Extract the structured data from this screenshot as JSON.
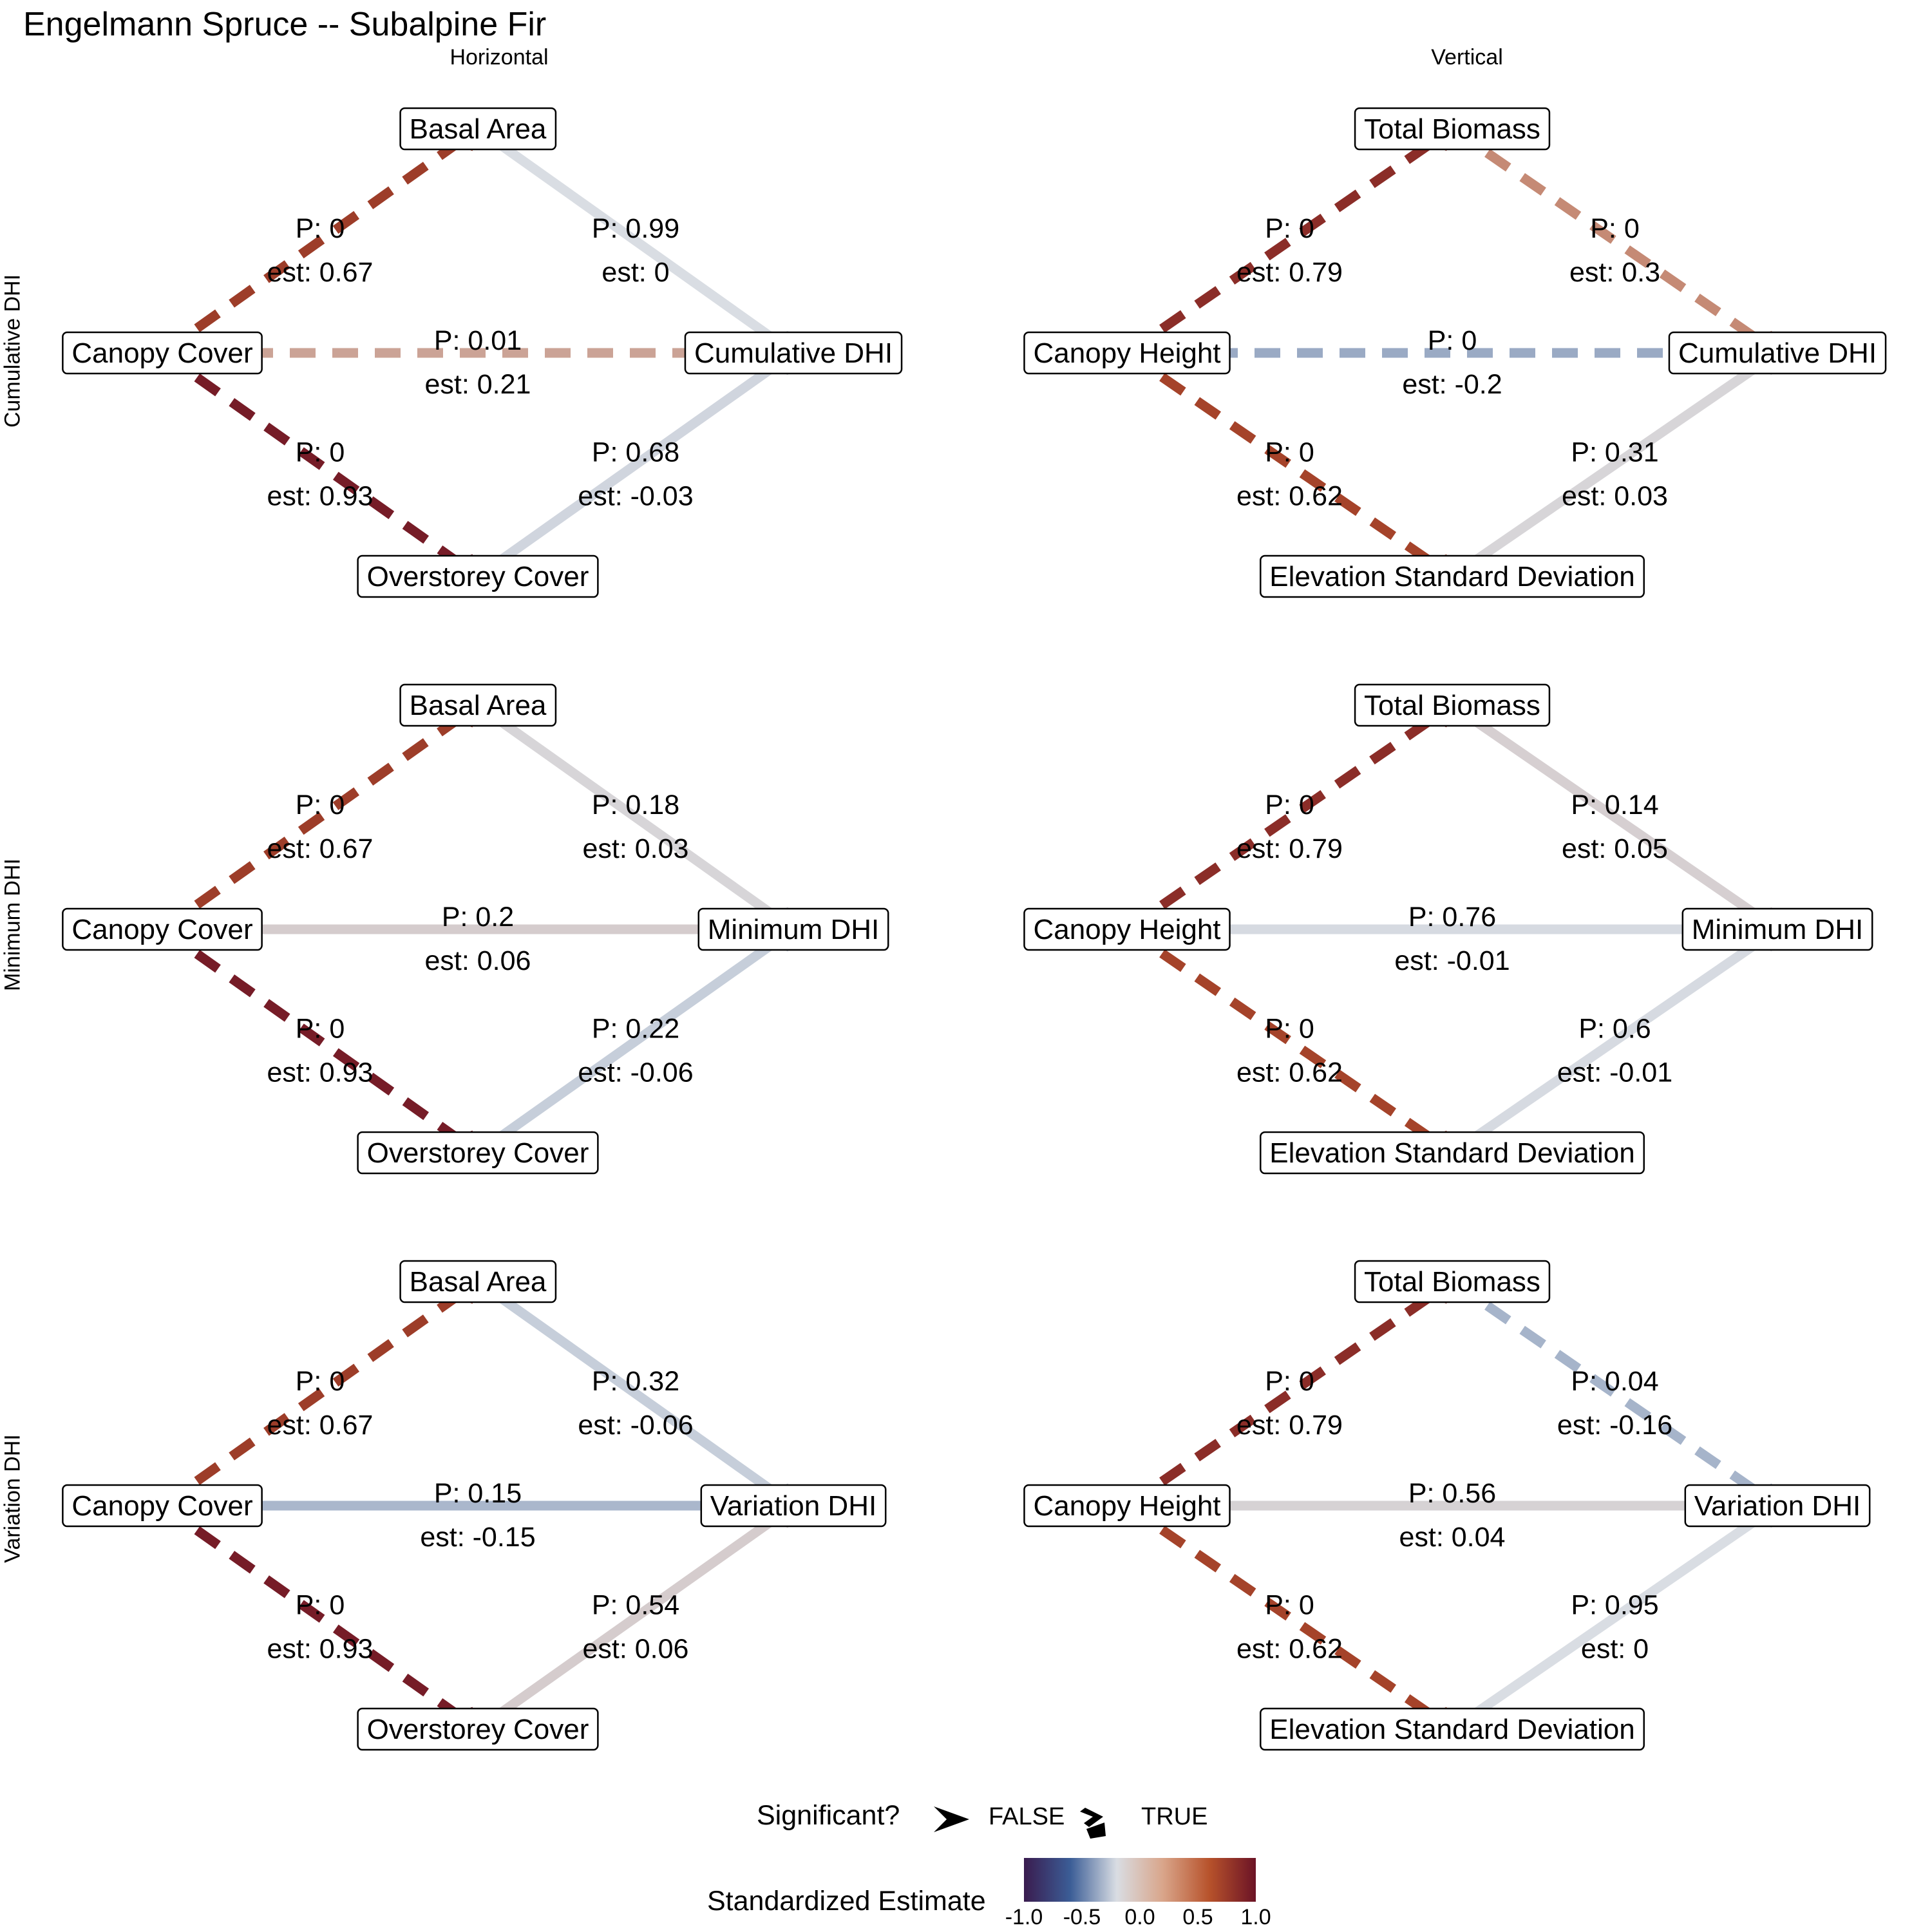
{
  "title": "Engelmann Spruce -- Subalpine Fir",
  "columns": [
    "Horizontal",
    "Vertical"
  ],
  "rows": [
    "Cumulative DHI",
    "Minimum DHI",
    "Variation DHI"
  ],
  "colors": {
    "neg1": "#3a1c4f",
    "negHalf": "#3b5d96",
    "zero": "#d9dde3",
    "posHalf": "#b7522b",
    "pos1": "#6b1326"
  },
  "chart_data": {
    "type": "path-diagram",
    "panels": [
      {
        "row": "Cumulative DHI",
        "col": "Horizontal",
        "nodes": {
          "left": "Canopy Cover",
          "top": "Basal Area",
          "bottom": "Overstorey Cover",
          "right": "Cumulative DHI"
        },
        "edges": [
          {
            "from": "left",
            "to": "top",
            "p": "P: 0",
            "est_label": "est: 0.67",
            "est": 0.67,
            "significant": true
          },
          {
            "from": "left",
            "to": "bottom",
            "p": "P: 0",
            "est_label": "est: 0.93",
            "est": 0.93,
            "significant": true
          },
          {
            "from": "left",
            "to": "right",
            "p": "P: 0.01",
            "est_label": "est: 0.21",
            "est": 0.21,
            "significant": true
          },
          {
            "from": "top",
            "to": "right",
            "p": "P: 0.99",
            "est_label": "est: 0",
            "est": 0,
            "significant": false
          },
          {
            "from": "bottom",
            "to": "right",
            "p": "P: 0.68",
            "est_label": "est: -0.03",
            "est": -0.03,
            "significant": false
          }
        ]
      },
      {
        "row": "Cumulative DHI",
        "col": "Vertical",
        "nodes": {
          "left": "Canopy Height",
          "top": "Total Biomass",
          "bottom": "Elevation Standard Deviation",
          "right": "Cumulative DHI"
        },
        "edges": [
          {
            "from": "left",
            "to": "top",
            "p": "P: 0",
            "est_label": "est: 0.79",
            "est": 0.79,
            "significant": true
          },
          {
            "from": "left",
            "to": "bottom",
            "p": "P: 0",
            "est_label": "est: 0.62",
            "est": 0.62,
            "significant": true
          },
          {
            "from": "left",
            "to": "right",
            "p": "P: 0",
            "est_label": "est: -0.2",
            "est": -0.2,
            "significant": true
          },
          {
            "from": "top",
            "to": "right",
            "p": "P: 0",
            "est_label": "est: 0.3",
            "est": 0.3,
            "significant": true
          },
          {
            "from": "bottom",
            "to": "right",
            "p": "P: 0.31",
            "est_label": "est: 0.03",
            "est": 0.03,
            "significant": false
          }
        ]
      },
      {
        "row": "Minimum DHI",
        "col": "Horizontal",
        "nodes": {
          "left": "Canopy Cover",
          "top": "Basal Area",
          "bottom": "Overstorey Cover",
          "right": "Minimum DHI"
        },
        "edges": [
          {
            "from": "left",
            "to": "top",
            "p": "P: 0",
            "est_label": "est: 0.67",
            "est": 0.67,
            "significant": true
          },
          {
            "from": "left",
            "to": "bottom",
            "p": "P: 0",
            "est_label": "est: 0.93",
            "est": 0.93,
            "significant": true
          },
          {
            "from": "left",
            "to": "right",
            "p": "P: 0.2",
            "est_label": "est: 0.06",
            "est": 0.06,
            "significant": false
          },
          {
            "from": "top",
            "to": "right",
            "p": "P: 0.18",
            "est_label": "est: 0.03",
            "est": 0.03,
            "significant": false
          },
          {
            "from": "bottom",
            "to": "right",
            "p": "P: 0.22",
            "est_label": "est: -0.06",
            "est": -0.06,
            "significant": false
          }
        ]
      },
      {
        "row": "Minimum DHI",
        "col": "Vertical",
        "nodes": {
          "left": "Canopy Height",
          "top": "Total Biomass",
          "bottom": "Elevation Standard Deviation",
          "right": "Minimum DHI"
        },
        "edges": [
          {
            "from": "left",
            "to": "top",
            "p": "P: 0",
            "est_label": "est: 0.79",
            "est": 0.79,
            "significant": true
          },
          {
            "from": "left",
            "to": "bottom",
            "p": "P: 0",
            "est_label": "est: 0.62",
            "est": 0.62,
            "significant": true
          },
          {
            "from": "left",
            "to": "right",
            "p": "P: 0.76",
            "est_label": "est: -0.01",
            "est": -0.01,
            "significant": false
          },
          {
            "from": "top",
            "to": "right",
            "p": "P: 0.14",
            "est_label": "est: 0.05",
            "est": 0.05,
            "significant": false
          },
          {
            "from": "bottom",
            "to": "right",
            "p": "P: 0.6",
            "est_label": "est: -0.01",
            "est": -0.01,
            "significant": false
          }
        ]
      },
      {
        "row": "Variation DHI",
        "col": "Horizontal",
        "nodes": {
          "left": "Canopy Cover",
          "top": "Basal Area",
          "bottom": "Overstorey Cover",
          "right": "Variation DHI"
        },
        "edges": [
          {
            "from": "left",
            "to": "top",
            "p": "P: 0",
            "est_label": "est: 0.67",
            "est": 0.67,
            "significant": true
          },
          {
            "from": "left",
            "to": "bottom",
            "p": "P: 0",
            "est_label": "est: 0.93",
            "est": 0.93,
            "significant": true
          },
          {
            "from": "left",
            "to": "right",
            "p": "P: 0.15",
            "est_label": "est: -0.15",
            "est": -0.15,
            "significant": false
          },
          {
            "from": "top",
            "to": "right",
            "p": "P: 0.32",
            "est_label": "est: -0.06",
            "est": -0.06,
            "significant": false
          },
          {
            "from": "bottom",
            "to": "right",
            "p": "P: 0.54",
            "est_label": "est: 0.06",
            "est": 0.06,
            "significant": false
          }
        ]
      },
      {
        "row": "Variation DHI",
        "col": "Vertical",
        "nodes": {
          "left": "Canopy Height",
          "top": "Total Biomass",
          "bottom": "Elevation Standard Deviation",
          "right": "Variation DHI"
        },
        "edges": [
          {
            "from": "left",
            "to": "top",
            "p": "P: 0",
            "est_label": "est: 0.79",
            "est": 0.79,
            "significant": true
          },
          {
            "from": "left",
            "to": "bottom",
            "p": "P: 0",
            "est_label": "est: 0.62",
            "est": 0.62,
            "significant": true
          },
          {
            "from": "left",
            "to": "right",
            "p": "P: 0.56",
            "est_label": "est: 0.04",
            "est": 0.04,
            "significant": false
          },
          {
            "from": "top",
            "to": "right",
            "p": "P: 0.04",
            "est_label": "est: -0.16",
            "est": -0.16,
            "significant": true
          },
          {
            "from": "bottom",
            "to": "right",
            "p": "P: 0.95",
            "est_label": "est: 0",
            "est": 0,
            "significant": false
          }
        ]
      }
    ]
  },
  "legend": {
    "significant_title": "Significant?",
    "significant_false": "FALSE",
    "significant_true": "TRUE",
    "estimate_title": "Standardized Estimate",
    "ticks": [
      "-1.0",
      "-0.5",
      "0.0",
      "0.5",
      "1.0"
    ]
  }
}
